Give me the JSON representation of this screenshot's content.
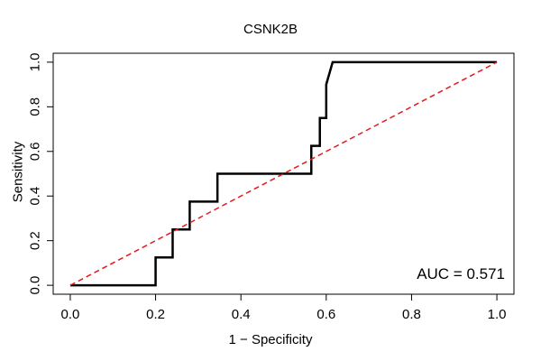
{
  "chart_data": {
    "type": "line",
    "title": "CSNK2B",
    "xlabel": "1 − Specificity",
    "ylabel": "Sensitivity",
    "xlim": [
      0.0,
      1.0
    ],
    "ylim": [
      0.0,
      1.0
    ],
    "xticks": [
      "0.0",
      "0.2",
      "0.4",
      "0.6",
      "0.8",
      "1.0"
    ],
    "yticks": [
      "0.0",
      "0.2",
      "0.4",
      "0.6",
      "0.8",
      "1.0"
    ],
    "series": [
      {
        "name": "ROC",
        "color": "#000000",
        "x": [
          0.0,
          0.2,
          0.2,
          0.24,
          0.24,
          0.28,
          0.28,
          0.345,
          0.345,
          0.565,
          0.565,
          0.585,
          0.585,
          0.6,
          0.6,
          0.615,
          1.0
        ],
        "y": [
          0.0,
          0.0,
          0.125,
          0.125,
          0.25,
          0.25,
          0.375,
          0.375,
          0.5,
          0.5,
          0.625,
          0.625,
          0.75,
          0.75,
          0.9,
          1.0,
          1.0
        ]
      },
      {
        "name": "Reference",
        "color": "#e41a1c",
        "style": "dashed",
        "x": [
          0.0,
          1.0
        ],
        "y": [
          0.0,
          1.0
        ]
      }
    ],
    "annotation": "AUC = 0.571"
  }
}
